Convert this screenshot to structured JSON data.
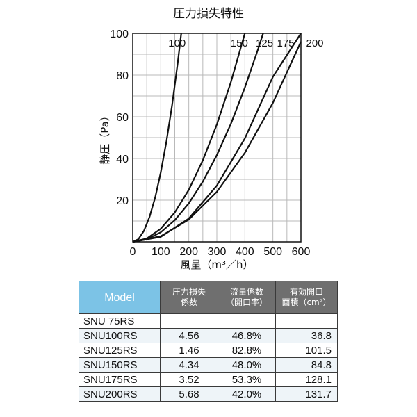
{
  "chart_data": {
    "type": "line",
    "title": "圧力損失特性",
    "xlabel": "風量（m³／h）",
    "ylabel": "静圧（Pa）",
    "xlim": [
      0,
      600
    ],
    "ylim": [
      0,
      100
    ],
    "x_ticks": [
      "0",
      "100",
      "200",
      "300",
      "400",
      "500",
      "600"
    ],
    "y_ticks": [
      "20",
      "40",
      "60",
      "80",
      "100"
    ],
    "grid": true,
    "series": [
      {
        "name": "100",
        "x": [
          0,
          20,
          40,
          60,
          80,
          100,
          120,
          140,
          160,
          173
        ],
        "y": [
          0,
          1.3,
          5.3,
          12.0,
          21.3,
          33.3,
          48.0,
          65.3,
          85.3,
          100
        ]
      },
      {
        "name": "150",
        "x": [
          0,
          50,
          100,
          150,
          200,
          250,
          300,
          350,
          400
        ],
        "y": [
          0,
          1.6,
          6.3,
          14.1,
          25.0,
          39.1,
          56.3,
          76.6,
          100
        ]
      },
      {
        "name": "125",
        "x": [
          0,
          50,
          100,
          150,
          200,
          250,
          300,
          350,
          400,
          450,
          465
        ],
        "y": [
          0,
          1.2,
          4.6,
          10.4,
          18.5,
          28.9,
          41.6,
          56.6,
          74.0,
          93.6,
          100
        ]
      },
      {
        "name": "175",
        "x": [
          0,
          100,
          200,
          300,
          400,
          500,
          600
        ],
        "y": [
          0,
          2.4,
          11.2,
          27.0,
          49.6,
          79.2,
          101
        ]
      },
      {
        "name": "200",
        "x": [
          0,
          100,
          200,
          300,
          400,
          500,
          600
        ],
        "y": [
          0,
          2.7,
          10.7,
          24.0,
          42.7,
          66.7,
          96.0
        ]
      }
    ]
  },
  "table": {
    "headers": [
      "Model",
      "圧力損失\n係数",
      "流量係数\n（開口率）",
      "有効開口\n面積（cm²）"
    ],
    "rows": [
      [
        "SNU  75RS",
        "",
        "",
        ""
      ],
      [
        "SNU100RS",
        "4.56",
        "46.8%",
        "36.8"
      ],
      [
        "SNU125RS",
        "1.46",
        "82.8%",
        "101.5"
      ],
      [
        "SNU150RS",
        "4.34",
        "48.0%",
        "84.8"
      ],
      [
        "SNU175RS",
        "3.52",
        "53.3%",
        "128.1"
      ],
      [
        "SNU200RS",
        "5.68",
        "42.0%",
        "131.7"
      ]
    ]
  },
  "colors": {
    "model_header": "#7cc3e6",
    "property_header": "#6f6f6f",
    "grid": "#b9b9b9",
    "curve": "#111111"
  }
}
